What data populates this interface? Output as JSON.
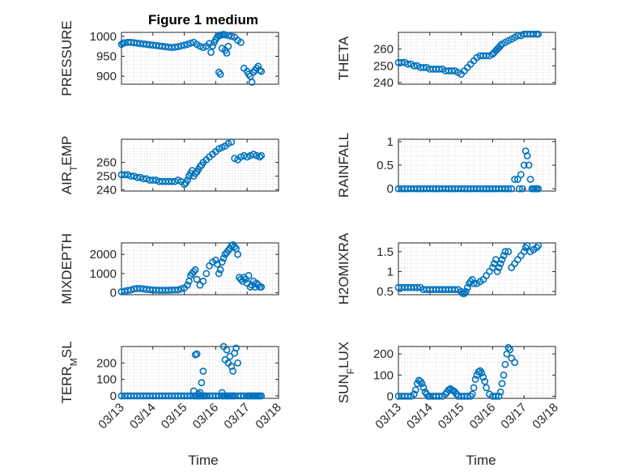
{
  "chart_data": {
    "type": "scatter",
    "x_ticks": [
      "03/13",
      "03/14",
      "03/15",
      "03/16",
      "03/17",
      "03/18"
    ],
    "x_range": [
      0,
      5
    ],
    "marker_color": "#0072BD",
    "panels": [
      {
        "id": "pressure",
        "title": "Figure 1 medium",
        "ylabel": "PRESSURE",
        "ylim": [
          880,
          1010
        ],
        "yticks": [
          900,
          950,
          1000
        ],
        "ytick_labels": [
          "900",
          "950",
          "1000"
        ],
        "x": [
          0.0,
          0.05,
          0.1,
          0.2,
          0.3,
          0.4,
          0.5,
          0.6,
          0.7,
          0.8,
          0.9,
          1.0,
          1.1,
          1.2,
          1.3,
          1.4,
          1.5,
          1.6,
          1.7,
          1.8,
          1.9,
          2.0,
          2.1,
          2.2,
          2.3,
          2.4,
          2.5,
          2.6,
          2.7,
          2.8,
          2.85,
          2.9,
          2.95,
          3.0,
          3.05,
          3.1,
          3.15,
          3.2,
          3.25,
          3.3,
          3.4,
          3.5,
          3.6,
          3.7,
          3.8,
          3.9,
          4.0,
          4.05,
          4.1,
          4.15,
          4.2,
          4.25,
          4.3,
          4.35,
          4.4,
          4.45
        ],
        "y": [
          980,
          983,
          984,
          985,
          985,
          984,
          983,
          982,
          981,
          980,
          979,
          978,
          977,
          976,
          975,
          974,
          973,
          972,
          973,
          974,
          976,
          978,
          980,
          983,
          985,
          980,
          975,
          972,
          975,
          982,
          960,
          976,
          985,
          992,
          998,
          1001,
          1003,
          1004,
          1005,
          1004,
          1002,
          1000,
          998,
          990,
          985,
          920,
          912,
          905,
          900,
          885,
          910,
          915,
          920,
          925,
          915,
          912
        ],
        "x2": [
          3.1,
          3.15,
          3.2,
          3.3,
          3.35,
          3.4
        ],
        "y2": [
          910,
          905,
          970,
          965,
          958,
          975
        ]
      },
      {
        "id": "theta",
        "ylabel": "THETA",
        "ylim": [
          239,
          270
        ],
        "yticks": [
          240,
          250,
          260
        ],
        "ytick_labels": [
          "240",
          "250",
          "260"
        ],
        "x": [
          0.0,
          0.1,
          0.2,
          0.3,
          0.4,
          0.5,
          0.6,
          0.7,
          0.8,
          0.9,
          1.0,
          1.1,
          1.2,
          1.3,
          1.4,
          1.5,
          1.6,
          1.7,
          1.8,
          1.9,
          2.0,
          2.1,
          2.2,
          2.3,
          2.4,
          2.5,
          2.6,
          2.7,
          2.8,
          2.9,
          3.0,
          3.05,
          3.1,
          3.15,
          3.2,
          3.25,
          3.3,
          3.4,
          3.5,
          3.6,
          3.7,
          3.8,
          3.9,
          4.0,
          4.1,
          4.2,
          4.3,
          4.4,
          4.45
        ],
        "y": [
          252,
          252,
          252,
          251,
          251,
          250,
          250,
          249,
          249,
          249,
          248,
          248,
          248,
          248,
          248,
          247,
          247,
          247,
          247,
          246,
          245,
          247,
          249,
          251,
          253,
          255,
          256,
          256,
          256,
          256,
          257,
          258,
          259,
          260,
          261,
          262,
          263,
          264,
          265,
          266,
          267,
          268,
          268,
          269,
          269,
          269,
          269,
          269,
          269
        ]
      },
      {
        "id": "airtemp",
        "ylabel": "AIR_TEMP",
        "ylim": [
          239,
          277
        ],
        "yticks": [
          240,
          250,
          260
        ],
        "ytick_labels": [
          "240",
          "250",
          "260"
        ],
        "x": [
          0.0,
          0.1,
          0.2,
          0.3,
          0.4,
          0.5,
          0.6,
          0.7,
          0.8,
          0.9,
          1.0,
          1.1,
          1.2,
          1.3,
          1.4,
          1.5,
          1.6,
          1.7,
          1.8,
          1.9,
          2.0,
          2.05,
          2.1,
          2.15,
          2.2,
          2.25,
          2.3,
          2.35,
          2.4,
          2.45,
          2.5,
          2.55,
          2.6,
          2.7,
          2.8,
          2.9,
          3.0,
          3.1,
          3.2,
          3.3,
          3.4,
          3.5,
          3.6,
          3.7,
          3.8,
          3.9,
          4.0,
          4.1,
          4.2,
          4.3,
          4.4,
          4.45
        ],
        "y": [
          251,
          251,
          251,
          250,
          250,
          249,
          249,
          248,
          248,
          247,
          247,
          247,
          246,
          246,
          246,
          246,
          246,
          246,
          247,
          246,
          244,
          245,
          247,
          250,
          252,
          254,
          250,
          252,
          253,
          255,
          257,
          258,
          260,
          262,
          264,
          266,
          268,
          270,
          271,
          272,
          274,
          275,
          263,
          262,
          264,
          265,
          264,
          265,
          266,
          265,
          264,
          265
        ]
      },
      {
        "id": "rainfall",
        "ylabel": "RAINFALL",
        "ylim": [
          -0.05,
          1.05
        ],
        "yticks": [
          0,
          0.5,
          1
        ],
        "ytick_labels": [
          "0",
          "0.5",
          "1"
        ],
        "x": [
          0.0,
          0.1,
          0.2,
          0.3,
          0.4,
          0.5,
          0.6,
          0.7,
          0.8,
          0.9,
          1.0,
          1.1,
          1.2,
          1.3,
          1.4,
          1.5,
          1.6,
          1.7,
          1.8,
          1.9,
          2.0,
          2.1,
          2.2,
          2.3,
          2.4,
          2.5,
          2.6,
          2.7,
          2.8,
          2.9,
          3.0,
          3.1,
          3.2,
          3.3,
          3.4,
          3.5,
          3.6,
          3.7,
          3.8,
          3.85,
          3.9,
          3.95,
          4.0,
          4.05,
          4.1,
          4.15,
          4.2,
          4.25,
          4.3,
          4.35,
          4.4,
          4.45
        ],
        "y": [
          0,
          0,
          0,
          0,
          0,
          0,
          0,
          0,
          0,
          0,
          0,
          0,
          0,
          0,
          0,
          0,
          0,
          0,
          0,
          0,
          0,
          0,
          0,
          0,
          0,
          0,
          0,
          0,
          0,
          0,
          0,
          0,
          0,
          0,
          0,
          0,
          0,
          0.2,
          0.2,
          0,
          0.3,
          0,
          0.5,
          0.8,
          0.7,
          0.5,
          0.2,
          0,
          0,
          0,
          0,
          0
        ]
      },
      {
        "id": "mixdepth",
        "ylabel": "MIXDEPTH",
        "ylim": [
          -100,
          2600
        ],
        "yticks": [
          0,
          1000,
          2000
        ],
        "ytick_labels": [
          "0",
          "1000",
          "2000"
        ],
        "x": [
          0.0,
          0.1,
          0.2,
          0.3,
          0.4,
          0.5,
          0.6,
          0.7,
          0.8,
          0.9,
          1.0,
          1.1,
          1.2,
          1.3,
          1.4,
          1.5,
          1.6,
          1.7,
          1.8,
          1.9,
          2.0,
          2.1,
          2.15,
          2.2,
          2.25,
          2.3,
          2.35,
          2.4,
          2.5,
          2.6,
          2.7,
          2.8,
          2.9,
          3.0,
          3.05,
          3.1,
          3.15,
          3.2,
          3.25,
          3.3,
          3.35,
          3.4,
          3.45,
          3.5,
          3.55,
          3.6,
          3.65,
          3.7,
          3.75,
          3.8,
          3.85,
          3.9,
          3.95,
          4.0,
          4.05,
          4.1,
          4.15,
          4.2,
          4.25,
          4.3,
          4.35,
          4.4,
          4.45
        ],
        "y": [
          50,
          80,
          120,
          150,
          200,
          220,
          220,
          200,
          180,
          160,
          150,
          140,
          130,
          130,
          130,
          130,
          140,
          150,
          150,
          200,
          250,
          400,
          600,
          900,
          1000,
          1100,
          1200,
          700,
          400,
          600,
          1000,
          1400,
          1600,
          1700,
          1500,
          1000,
          1200,
          1600,
          1800,
          2000,
          2100,
          2200,
          2300,
          2450,
          2500,
          2400,
          2300,
          2000,
          800,
          700,
          600,
          800,
          700,
          500,
          900,
          300,
          400,
          600,
          300,
          500,
          400,
          300,
          300
        ]
      },
      {
        "id": "h2omixra",
        "ylabel": "H2OMIXRA",
        "ylim": [
          0.42,
          1.72
        ],
        "yticks": [
          0.5,
          1,
          1.5
        ],
        "ytick_labels": [
          "0.5",
          "1",
          "1.5"
        ],
        "x": [
          0.0,
          0.1,
          0.2,
          0.3,
          0.4,
          0.5,
          0.6,
          0.7,
          0.8,
          0.9,
          1.0,
          1.1,
          1.2,
          1.3,
          1.4,
          1.5,
          1.6,
          1.7,
          1.8,
          1.9,
          2.0,
          2.05,
          2.1,
          2.15,
          2.2,
          2.25,
          2.3,
          2.35,
          2.4,
          2.5,
          2.6,
          2.7,
          2.8,
          2.9,
          3.0,
          3.05,
          3.1,
          3.15,
          3.2,
          3.25,
          3.3,
          3.35,
          3.4,
          3.5,
          3.6,
          3.7,
          3.8,
          3.9,
          4.0,
          4.05,
          4.1,
          4.2,
          4.3,
          4.4,
          4.45
        ],
        "y": [
          0.6,
          0.6,
          0.6,
          0.6,
          0.6,
          0.6,
          0.6,
          0.6,
          0.55,
          0.55,
          0.55,
          0.55,
          0.55,
          0.55,
          0.55,
          0.55,
          0.55,
          0.55,
          0.55,
          0.55,
          0.5,
          0.45,
          0.45,
          0.5,
          0.6,
          0.7,
          0.75,
          0.8,
          0.7,
          0.7,
          0.75,
          0.8,
          0.9,
          1.0,
          1.1,
          1.2,
          1.3,
          1.0,
          1.1,
          1.2,
          1.3,
          1.4,
          1.5,
          1.5,
          1.1,
          1.2,
          1.3,
          1.4,
          1.5,
          1.6,
          1.65,
          1.5,
          1.55,
          1.6,
          1.65
        ]
      },
      {
        "id": "terrmsl",
        "ylabel": "TERR_MSL",
        "ylim": [
          -15,
          300
        ],
        "yticks": [
          0,
          100,
          200
        ],
        "ytick_labels": [
          "0",
          "100",
          "200"
        ],
        "x": [
          0.0,
          0.1,
          0.2,
          0.3,
          0.4,
          0.5,
          0.6,
          0.7,
          0.8,
          0.9,
          1.0,
          1.1,
          1.2,
          1.3,
          1.4,
          1.5,
          1.6,
          1.7,
          1.8,
          1.9,
          2.0,
          2.1,
          2.2,
          2.3,
          2.35,
          2.4,
          2.45,
          2.5,
          2.55,
          2.6,
          2.65,
          2.7,
          2.8,
          2.9,
          3.0,
          3.1,
          3.2,
          3.25,
          3.3,
          3.35,
          3.4,
          3.45,
          3.5,
          3.55,
          3.6,
          3.7,
          3.8,
          3.9,
          4.0,
          4.05,
          4.1,
          4.15,
          4.2,
          4.25,
          4.3,
          4.35,
          4.4,
          4.45
        ],
        "y": [
          0,
          0,
          0,
          0,
          0,
          0,
          0,
          0,
          0,
          0,
          0,
          0,
          0,
          0,
          0,
          0,
          0,
          0,
          0,
          0,
          0,
          0,
          0,
          0,
          0,
          0,
          0,
          0,
          0,
          0,
          0,
          0,
          0,
          0,
          0,
          0,
          0,
          0,
          0,
          0,
          0,
          0,
          0,
          0,
          0,
          0,
          0,
          0,
          0,
          0,
          0,
          0,
          0,
          0,
          0,
          0,
          0,
          0
        ],
        "x2": [
          2.3,
          2.35,
          2.4,
          2.45,
          2.5,
          2.55,
          2.6,
          3.2,
          3.25,
          3.3,
          3.35,
          3.4,
          3.45,
          3.5,
          3.55,
          3.6,
          3.65,
          3.7
        ],
        "y2": [
          30,
          250,
          255,
          10,
          20,
          80,
          150,
          20,
          300,
          220,
          280,
          200,
          240,
          180,
          150,
          260,
          290,
          200
        ]
      },
      {
        "id": "sunflux",
        "ylabel": "SUN_FLUX",
        "ylim": [
          -10,
          235
        ],
        "yticks": [
          0,
          100,
          200
        ],
        "ytick_labels": [
          "0",
          "100",
          "200"
        ],
        "x": [
          0.0,
          0.1,
          0.2,
          0.3,
          0.4,
          0.5,
          0.55,
          0.6,
          0.65,
          0.7,
          0.75,
          0.8,
          0.85,
          0.9,
          0.95,
          1.0,
          1.1,
          1.2,
          1.3,
          1.4,
          1.5,
          1.55,
          1.6,
          1.65,
          1.7,
          1.75,
          1.8,
          1.85,
          1.9,
          2.0,
          2.1,
          2.2,
          2.3,
          2.35,
          2.4,
          2.45,
          2.5,
          2.55,
          2.6,
          2.65,
          2.7,
          2.75,
          2.8,
          2.9,
          3.0,
          3.1,
          3.2,
          3.25,
          3.3,
          3.35,
          3.4,
          3.45,
          3.5,
          3.55,
          3.6,
          3.7
        ],
        "y": [
          0,
          0,
          0,
          0,
          0,
          10,
          30,
          60,
          75,
          70,
          60,
          40,
          20,
          10,
          0,
          0,
          0,
          0,
          0,
          0,
          10,
          20,
          30,
          35,
          30,
          25,
          20,
          10,
          0,
          0,
          0,
          0,
          0,
          10,
          40,
          80,
          100,
          115,
          120,
          110,
          90,
          70,
          40,
          10,
          0,
          0,
          0,
          20,
          60,
          100,
          150,
          200,
          230,
          220,
          180,
          160
        ]
      }
    ],
    "xlabels": [
      "Time",
      "Time"
    ]
  }
}
